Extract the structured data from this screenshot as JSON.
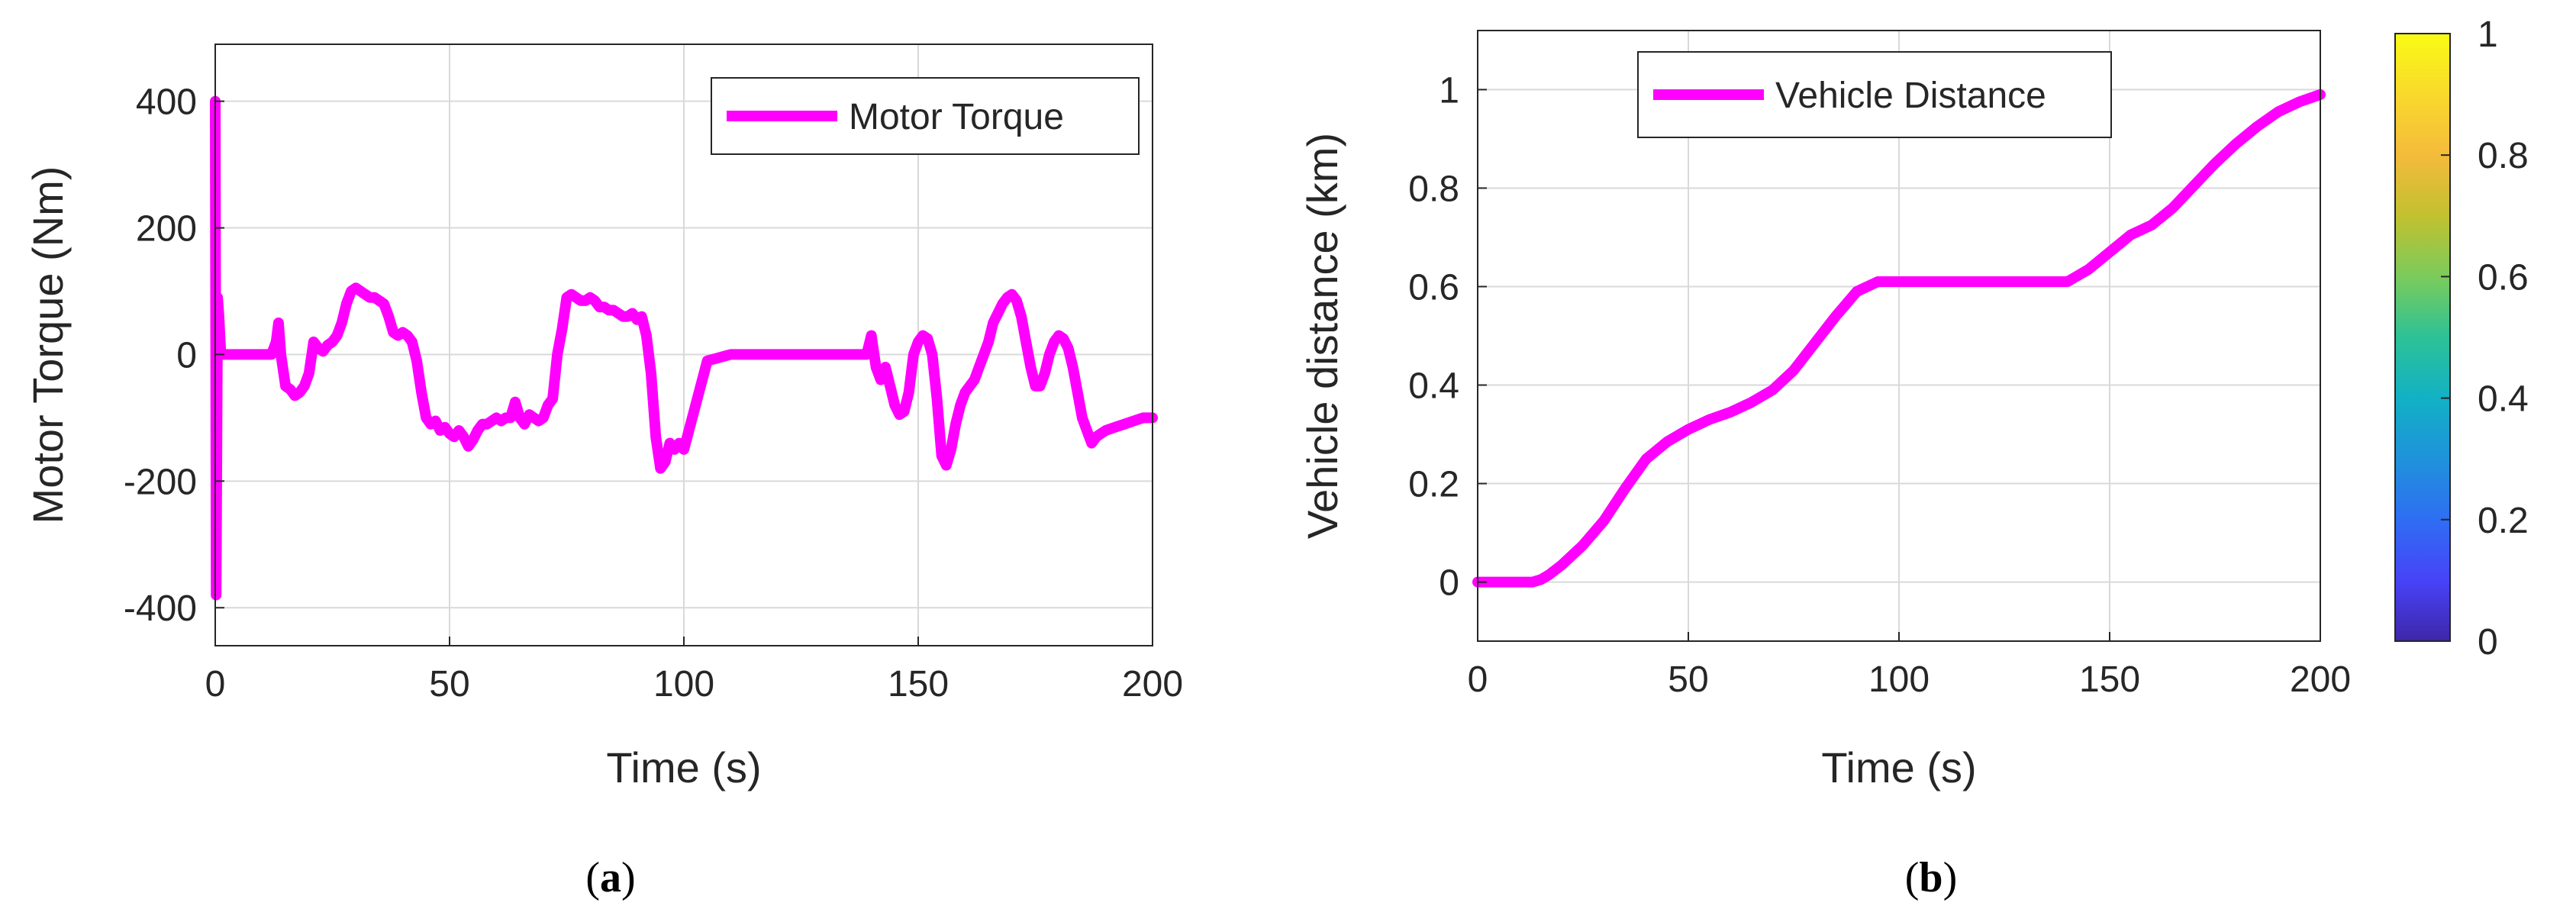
{
  "chart_data": [
    {
      "type": "line",
      "caption": {
        "open": "(",
        "letter": "a",
        "close": ")"
      },
      "xlabel": "Time (s)",
      "ylabel": "Motor Torque (Nm)",
      "xlim": [
        0,
        200
      ],
      "ylim": [
        -460,
        490
      ],
      "xticks": [
        0,
        50,
        100,
        150,
        200
      ],
      "xtick_labels": [
        "0",
        "50",
        "100",
        "150",
        "200"
      ],
      "yticks": [
        -400,
        -200,
        0,
        200,
        400
      ],
      "ytick_labels": [
        "-400",
        "-200",
        "0",
        "200",
        "400"
      ],
      "grid": true,
      "legend_position": "top-right",
      "series": [
        {
          "name": "Motor Torque",
          "color": "#ff00ff",
          "x": [
            0,
            0.2,
            0.5,
            0.8,
            1.2,
            2,
            5,
            10,
            12,
            13,
            13.5,
            14,
            15,
            16,
            17,
            18,
            19,
            20,
            21,
            22,
            23,
            24,
            25,
            26,
            27,
            28,
            29,
            30,
            31,
            32,
            33,
            34,
            35,
            36,
            37,
            38,
            39,
            40,
            41,
            42,
            43,
            44,
            45,
            46,
            47,
            48,
            49,
            50,
            51,
            52,
            53,
            54,
            55,
            56,
            57,
            58,
            59,
            60,
            61,
            62,
            63,
            64,
            65,
            66,
            67,
            68,
            69,
            70,
            71,
            72,
            73,
            74,
            75,
            76,
            77,
            78,
            79,
            80,
            81,
            82,
            83,
            84,
            85,
            86,
            87,
            88,
            89,
            90,
            91,
            92,
            93,
            94,
            95,
            96,
            97,
            98,
            99,
            100,
            105,
            110,
            120,
            130,
            135,
            138,
            139,
            140,
            141,
            142,
            143,
            144,
            145,
            146,
            147,
            148,
            149,
            150,
            151,
            152,
            153,
            154,
            155,
            156,
            157,
            158,
            159,
            160,
            161,
            162,
            163,
            164,
            165,
            166,
            167,
            168,
            169,
            170,
            171,
            172,
            173,
            174,
            175,
            176,
            177,
            178,
            179,
            180,
            181,
            182,
            183,
            184,
            185,
            186,
            187,
            188,
            189,
            190,
            192,
            194,
            196,
            198,
            200
          ],
          "y": [
            400,
            -380,
            90,
            60,
            0,
            0,
            0,
            0,
            0,
            20,
            50,
            0,
            -50,
            -55,
            -65,
            -60,
            -50,
            -30,
            20,
            10,
            5,
            15,
            20,
            30,
            50,
            80,
            100,
            105,
            100,
            95,
            90,
            90,
            85,
            80,
            60,
            35,
            30,
            35,
            30,
            20,
            -10,
            -60,
            -100,
            -110,
            -105,
            -120,
            -115,
            -125,
            -130,
            -120,
            -130,
            -145,
            -135,
            -120,
            -110,
            -110,
            -105,
            -100,
            -105,
            -100,
            -100,
            -75,
            -100,
            -110,
            -95,
            -100,
            -105,
            -100,
            -80,
            -70,
            0,
            40,
            90,
            95,
            90,
            85,
            85,
            90,
            85,
            75,
            75,
            70,
            70,
            65,
            60,
            60,
            65,
            55,
            60,
            30,
            -30,
            -130,
            -180,
            -170,
            -140,
            -150,
            -140,
            -150,
            -10,
            0,
            0,
            0,
            0,
            0,
            0,
            30,
            -20,
            -40,
            -20,
            -50,
            -80,
            -95,
            -90,
            -60,
            0,
            20,
            30,
            25,
            0,
            -70,
            -160,
            -175,
            -150,
            -110,
            -80,
            -60,
            -50,
            -40,
            -20,
            0,
            20,
            50,
            65,
            80,
            90,
            95,
            85,
            60,
            20,
            -20,
            -50,
            -50,
            -30,
            0,
            20,
            30,
            25,
            10,
            -20,
            -60,
            -100,
            -120,
            -140,
            -130,
            -125,
            -120,
            -115,
            -110,
            -105,
            -100,
            -100
          ]
        }
      ]
    },
    {
      "type": "line",
      "caption": {
        "open": "(",
        "letter": "b",
        "close": ")"
      },
      "xlabel": "Time (s)",
      "ylabel": "Vehicle distance (km)",
      "xlim": [
        0,
        200
      ],
      "ylim": [
        -0.12,
        1.12
      ],
      "xticks": [
        0,
        50,
        100,
        150,
        200
      ],
      "xtick_labels": [
        "0",
        "50",
        "100",
        "150",
        "200"
      ],
      "yticks": [
        0,
        0.2,
        0.4,
        0.6,
        0.8,
        1
      ],
      "ytick_labels": [
        "0",
        "0.2",
        "0.4",
        "0.6",
        "0.8",
        "1"
      ],
      "grid": true,
      "legend_position": "top-left",
      "series": [
        {
          "name": "Vehicle Distance",
          "color": "#ff00ff",
          "x": [
            0,
            5,
            10,
            13,
            15,
            17,
            20,
            25,
            30,
            35,
            40,
            45,
            50,
            55,
            60,
            65,
            70,
            75,
            80,
            85,
            90,
            95,
            100,
            110,
            120,
            130,
            140,
            145,
            150,
            155,
            160,
            165,
            170,
            175,
            180,
            185,
            190,
            195,
            200
          ],
          "y": [
            0,
            0,
            0,
            0,
            0.005,
            0.015,
            0.035,
            0.075,
            0.125,
            0.19,
            0.25,
            0.285,
            0.31,
            0.33,
            0.345,
            0.365,
            0.39,
            0.43,
            0.485,
            0.54,
            0.59,
            0.61,
            0.61,
            0.61,
            0.61,
            0.61,
            0.61,
            0.635,
            0.67,
            0.705,
            0.725,
            0.76,
            0.805,
            0.85,
            0.89,
            0.925,
            0.955,
            0.975,
            0.99
          ]
        }
      ],
      "colorbar": {
        "ticks": [
          0,
          0.2,
          0.4,
          0.6,
          0.8,
          1
        ],
        "tick_labels": [
          "0",
          "0.2",
          "0.4",
          "0.6",
          "0.8",
          "1"
        ],
        "colormap": "parula",
        "colors": [
          "#3e26a8",
          "#4743f8",
          "#2f6ef3",
          "#1f92db",
          "#12b1c5",
          "#2dc296",
          "#7bcb5b",
          "#c2c12f",
          "#f4bb3b",
          "#f9d92c",
          "#f9fb15"
        ]
      }
    }
  ]
}
